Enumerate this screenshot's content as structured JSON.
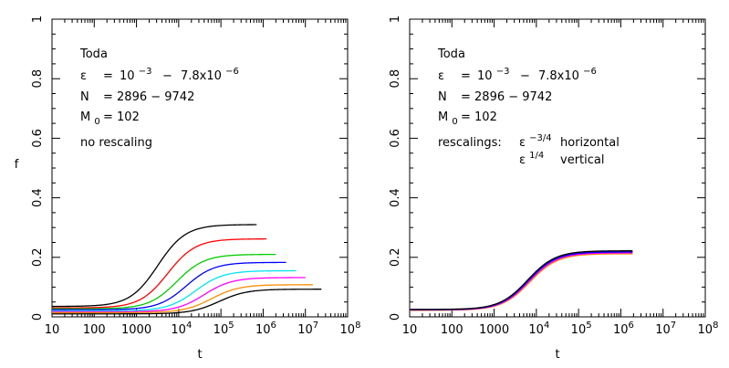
{
  "chart_data": [
    {
      "type": "line",
      "panel": "left",
      "xscale": "log",
      "xlim": [
        10,
        100000000
      ],
      "ylim": [
        0,
        1
      ],
      "xlabel": "t",
      "ylabel": "f",
      "x_tick_labels": [
        "10",
        "100",
        "1000",
        "10^4",
        "10^5",
        "10^6",
        "10^7",
        "10^8"
      ],
      "y_tick_labels": [
        "0",
        "0.2",
        "0.4",
        "0.6",
        "0.8",
        "1"
      ],
      "annotations": {
        "model": "Toda",
        "epsilon_sym": "ε",
        "epsilon_eq": "=",
        "epsilon_a": "10",
        "epsilon_a_exp": "−3",
        "epsilon_dash": "−",
        "epsilon_b": "7.8x10",
        "epsilon_b_exp": "−6",
        "n_sym": "N",
        "n_range": "=  2896  −  9742",
        "m_sym": "M",
        "m_sub": "0",
        "m_value": "=  102",
        "note": "no rescaling"
      },
      "series": [
        {
          "name": "curve-1",
          "color": "#000000",
          "initial": 0.035,
          "final": 0.31,
          "t_mid": 3200,
          "t_end": 700000
        },
        {
          "name": "curve-2",
          "color": "#ff0000",
          "initial": 0.03,
          "final": 0.262,
          "t_mid": 5500,
          "t_end": 1200000
        },
        {
          "name": "curve-3",
          "color": "#00cc00",
          "initial": 0.027,
          "final": 0.21,
          "t_mid": 9000,
          "t_end": 2000000
        },
        {
          "name": "curve-4",
          "color": "#0000ff",
          "initial": 0.024,
          "final": 0.183,
          "t_mid": 15000,
          "t_end": 3500000
        },
        {
          "name": "curve-5",
          "color": "#00e5ee",
          "initial": 0.02,
          "final": 0.155,
          "t_mid": 25000,
          "t_end": 6000000
        },
        {
          "name": "curve-6",
          "color": "#ff00ff",
          "initial": 0.017,
          "final": 0.132,
          "t_mid": 40000,
          "t_end": 10000000
        },
        {
          "name": "curve-7",
          "color": "#ff8c00",
          "initial": 0.014,
          "final": 0.108,
          "t_mid": 60000,
          "t_end": 15000000
        },
        {
          "name": "curve-8",
          "color": "#000000",
          "initial": 0.01,
          "final": 0.093,
          "t_mid": 90000,
          "t_end": 24000000
        }
      ]
    },
    {
      "type": "line",
      "panel": "right",
      "xscale": "log",
      "xlim": [
        10,
        100000000
      ],
      "ylim": [
        0,
        1
      ],
      "xlabel": "t",
      "ylabel": "",
      "x_tick_labels": [
        "10",
        "100",
        "1000",
        "10^4",
        "10^5",
        "10^6",
        "10^7",
        "10^8"
      ],
      "y_tick_labels": [
        "0",
        "0.2",
        "0.4",
        "0.6",
        "0.8",
        "1"
      ],
      "annotations": {
        "model": "Toda",
        "epsilon_sym": "ε",
        "epsilon_eq": "=",
        "epsilon_a": "10",
        "epsilon_a_exp": "−3",
        "epsilon_dash": "−",
        "epsilon_b": "7.8x10",
        "epsilon_b_exp": "−6",
        "n_sym": "N",
        "n_range": "=  2896  −  9742",
        "m_sym": "M",
        "m_sub": "0",
        "m_value": "=  102",
        "rescalings_label": "rescalings:",
        "rescale_h_sym": "ε",
        "rescale_h_exp": "−3/4",
        "rescale_h_label": "horizontal",
        "rescale_v_sym": "ε",
        "rescale_v_exp": "1/4",
        "rescale_v_label": "vertical"
      },
      "series": [
        {
          "name": "collapsed-orange",
          "color": "#ff8c00",
          "initial": 0.022,
          "final": 0.212,
          "t_mid": 7000,
          "t_end": 1900000
        },
        {
          "name": "collapsed-magenta",
          "color": "#ff00ff",
          "initial": 0.023,
          "final": 0.215,
          "t_mid": 6700,
          "t_end": 1900000
        },
        {
          "name": "collapsed-red",
          "color": "#ff0000",
          "initial": 0.024,
          "final": 0.22,
          "t_mid": 6300,
          "t_end": 1900000
        },
        {
          "name": "collapsed-blue",
          "color": "#0000ff",
          "initial": 0.024,
          "final": 0.218,
          "t_mid": 6400,
          "t_end": 1900000
        },
        {
          "name": "collapsed-black",
          "color": "#000000",
          "initial": 0.025,
          "final": 0.222,
          "t_mid": 6200,
          "t_end": 1900000
        }
      ]
    }
  ]
}
